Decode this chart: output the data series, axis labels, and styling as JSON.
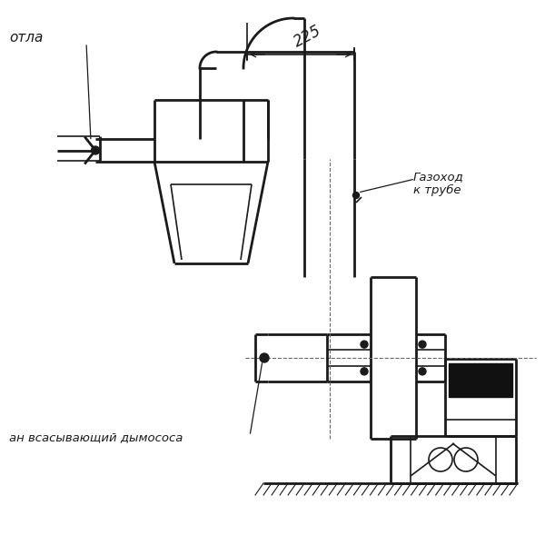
{
  "bg_color": "#ffffff",
  "line_color": "#1a1a1a",
  "label_kotla": "отла",
  "label_gazokhod": "Газоход\nк трубе",
  "label_dymosos": "ан всасывающий дымососа",
  "dim_225": "225",
  "figsize": [
    6.0,
    6.0
  ],
  "dpi": 100
}
